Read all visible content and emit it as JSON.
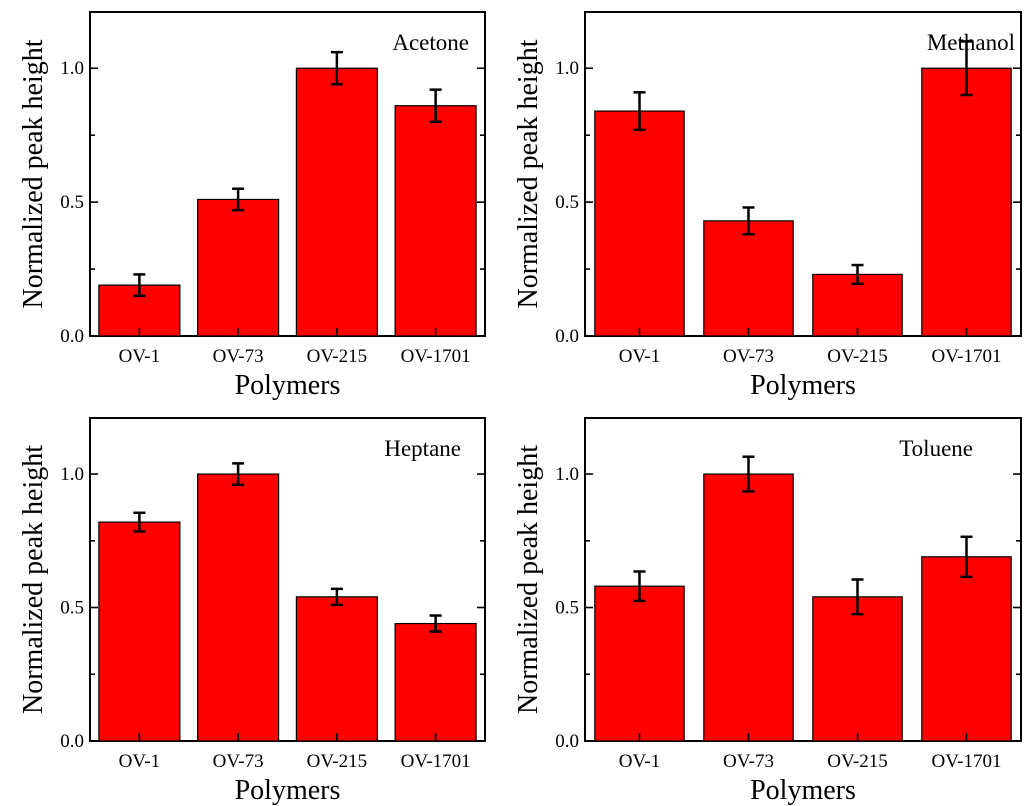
{
  "chart_data": [
    {
      "type": "bar",
      "title": "Acetone",
      "xlabel": "Polymers",
      "ylabel": "Normalized peak height",
      "categories": [
        "OV-1",
        "OV-73",
        "OV-215",
        "OV-1701"
      ],
      "values": [
        0.19,
        0.51,
        1.0,
        0.86
      ],
      "errors": [
        0.04,
        0.04,
        0.06,
        0.06
      ],
      "ylim": [
        0,
        1.21
      ],
      "yticks": [
        "0.0",
        "0.5",
        "1.0"
      ],
      "bar_color": "#ff0000",
      "grid": false
    },
    {
      "type": "bar",
      "title": "Methanol",
      "xlabel": "Polymers",
      "ylabel": "Normalized peak height",
      "categories": [
        "OV-1",
        "OV-73",
        "OV-215",
        "OV-1701"
      ],
      "values": [
        0.84,
        0.43,
        0.23,
        1.0
      ],
      "errors": [
        0.07,
        0.05,
        0.035,
        0.1
      ],
      "ylim": [
        0,
        1.21
      ],
      "yticks": [
        "0.0",
        "0.5",
        "1.0"
      ],
      "bar_color": "#ff0000",
      "grid": false
    },
    {
      "type": "bar",
      "title": "Heptane",
      "xlabel": "Polymers",
      "ylabel": "Normalized peak height",
      "categories": [
        "OV-1",
        "OV-73",
        "OV-215",
        "OV-1701"
      ],
      "values": [
        0.82,
        1.0,
        0.54,
        0.44
      ],
      "errors": [
        0.035,
        0.04,
        0.03,
        0.03
      ],
      "ylim": [
        0,
        1.21
      ],
      "yticks": [
        "0.0",
        "0.5",
        "1.0"
      ],
      "bar_color": "#ff0000",
      "grid": false
    },
    {
      "type": "bar",
      "title": "Toluene",
      "xlabel": "Polymers",
      "ylabel": "Normalized peak height",
      "categories": [
        "OV-1",
        "OV-73",
        "OV-215",
        "OV-1701"
      ],
      "values": [
        0.58,
        1.0,
        0.54,
        0.69
      ],
      "errors": [
        0.055,
        0.065,
        0.065,
        0.075
      ],
      "ylim": [
        0,
        1.21
      ],
      "yticks": [
        "0.0",
        "0.5",
        "1.0"
      ],
      "bar_color": "#ff0000",
      "grid": false
    }
  ]
}
